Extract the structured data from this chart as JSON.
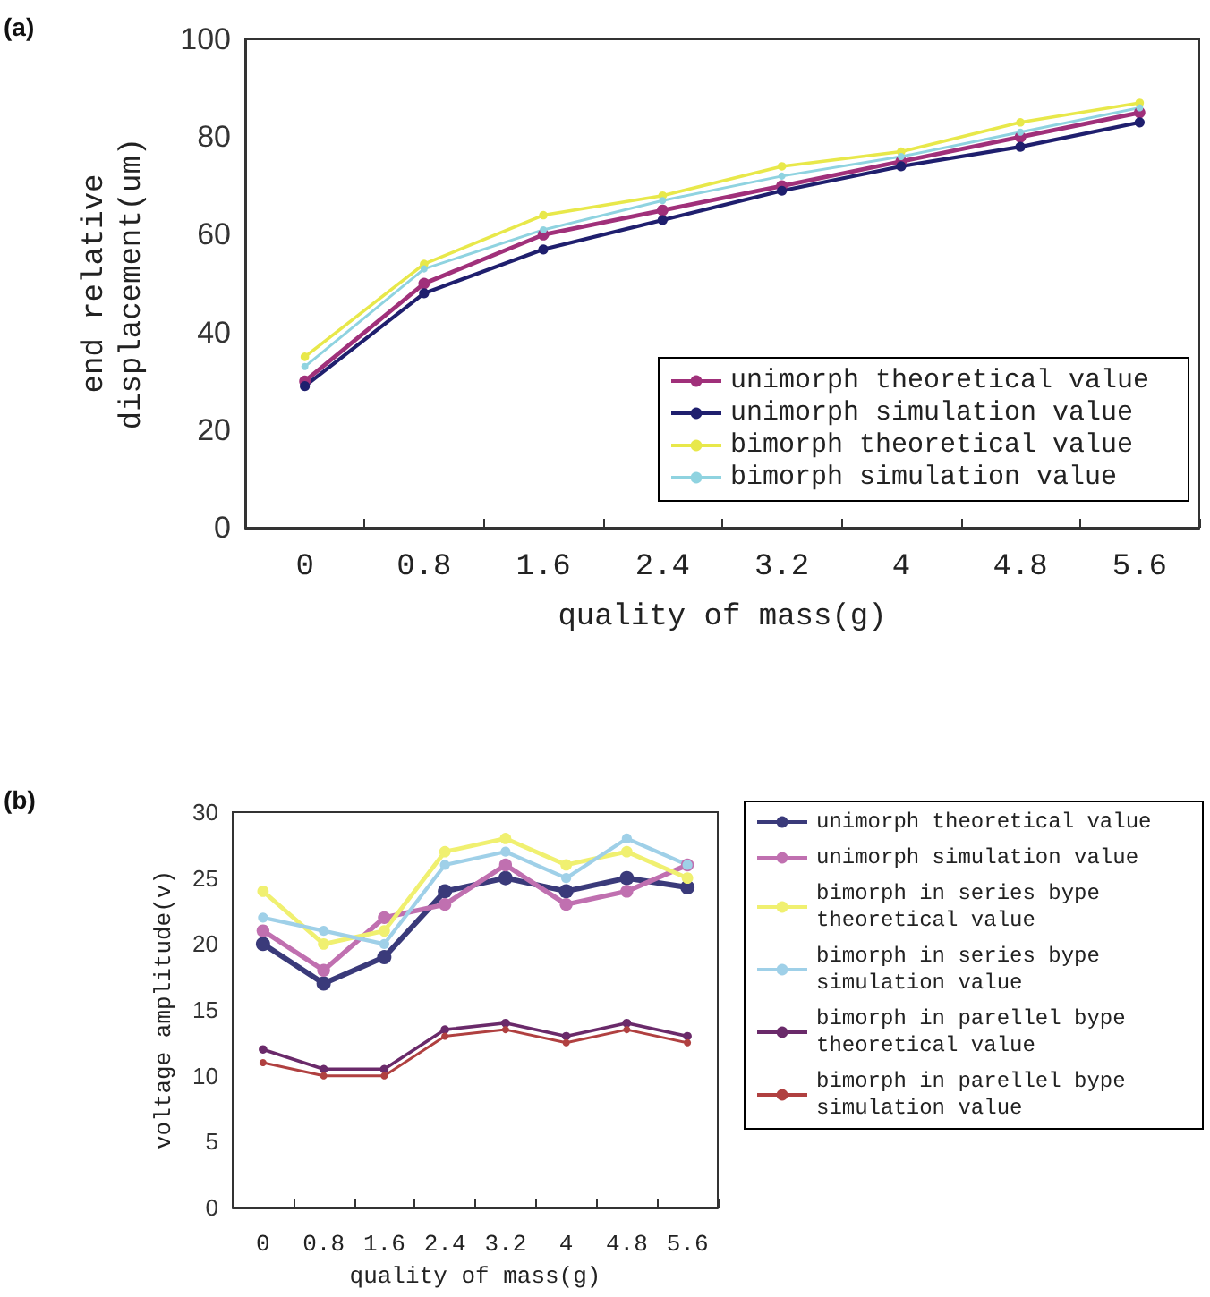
{
  "chart_data": [
    {
      "type": "line",
      "xlabel": "quality of mass(g)",
      "ylabel": "end relative\ndisplacement(um)",
      "annotations": [
        "(a)"
      ],
      "categories": [
        "0",
        "0.8",
        "1.6",
        "2.4",
        "3.2",
        "4",
        "4.8",
        "5.6"
      ],
      "ylim": [
        0,
        100
      ],
      "yticks": [
        0,
        20,
        40,
        60,
        80,
        100
      ],
      "grid": false,
      "legend": "bottom right",
      "marker": "circle",
      "series": [
        {
          "name": "unimorph theoretical value",
          "color": "#a0307a",
          "values": [
            30,
            50,
            60,
            65,
            70,
            75,
            80,
            85
          ]
        },
        {
          "name": "unimorph simulation value",
          "color": "#1f1f6e",
          "values": [
            29,
            48,
            57,
            63,
            69,
            74,
            78,
            83
          ]
        },
        {
          "name": "bimorph theoretical value",
          "color": "#e8e84a",
          "values": [
            35,
            54,
            64,
            68,
            74,
            77,
            83,
            87
          ]
        },
        {
          "name": "bimorph simulation value",
          "color": "#8fd3e0",
          "values": [
            33,
            53,
            61,
            67,
            72,
            76,
            81,
            86
          ]
        }
      ]
    },
    {
      "type": "line",
      "xlabel": "quality of mass(g)",
      "ylabel": "voltage amplitude(v)",
      "annotations": [
        "(b)"
      ],
      "categories": [
        "0",
        "0.8",
        "1.6",
        "2.4",
        "3.2",
        "4",
        "4.8",
        "5.6"
      ],
      "ylim": [
        0,
        30
      ],
      "yticks": [
        0,
        5,
        10,
        15,
        20,
        25,
        30
      ],
      "grid": false,
      "legend": "right",
      "marker": "circle",
      "series": [
        {
          "name": "unimorph theoretical value",
          "color": "#3a3a7a",
          "values": [
            20,
            17,
            19,
            24,
            25,
            24,
            25,
            24.3
          ]
        },
        {
          "name": "unimorph simulation value",
          "color": "#c070b0",
          "values": [
            21,
            18,
            22,
            23,
            26,
            23,
            24,
            26
          ]
        },
        {
          "name": "bimorph in series bype theoretical value",
          "color": "#f0f070",
          "values": [
            24,
            20,
            21,
            27,
            28,
            26,
            27,
            25
          ]
        },
        {
          "name": "bimorph in series bype simulation value",
          "color": "#9fd0e8",
          "values": [
            22,
            21,
            20,
            26,
            27,
            25,
            28,
            26
          ]
        },
        {
          "name": "bimorph in parellel bype theoretical value",
          "color": "#6a2a6a",
          "values": [
            12,
            10.5,
            10.5,
            13.5,
            14,
            13,
            14,
            13
          ]
        },
        {
          "name": "bimorph in parellel bype simulation value",
          "color": "#b04040",
          "values": [
            11,
            10,
            10,
            13,
            13.5,
            12.5,
            13.5,
            12.5
          ]
        }
      ]
    }
  ]
}
